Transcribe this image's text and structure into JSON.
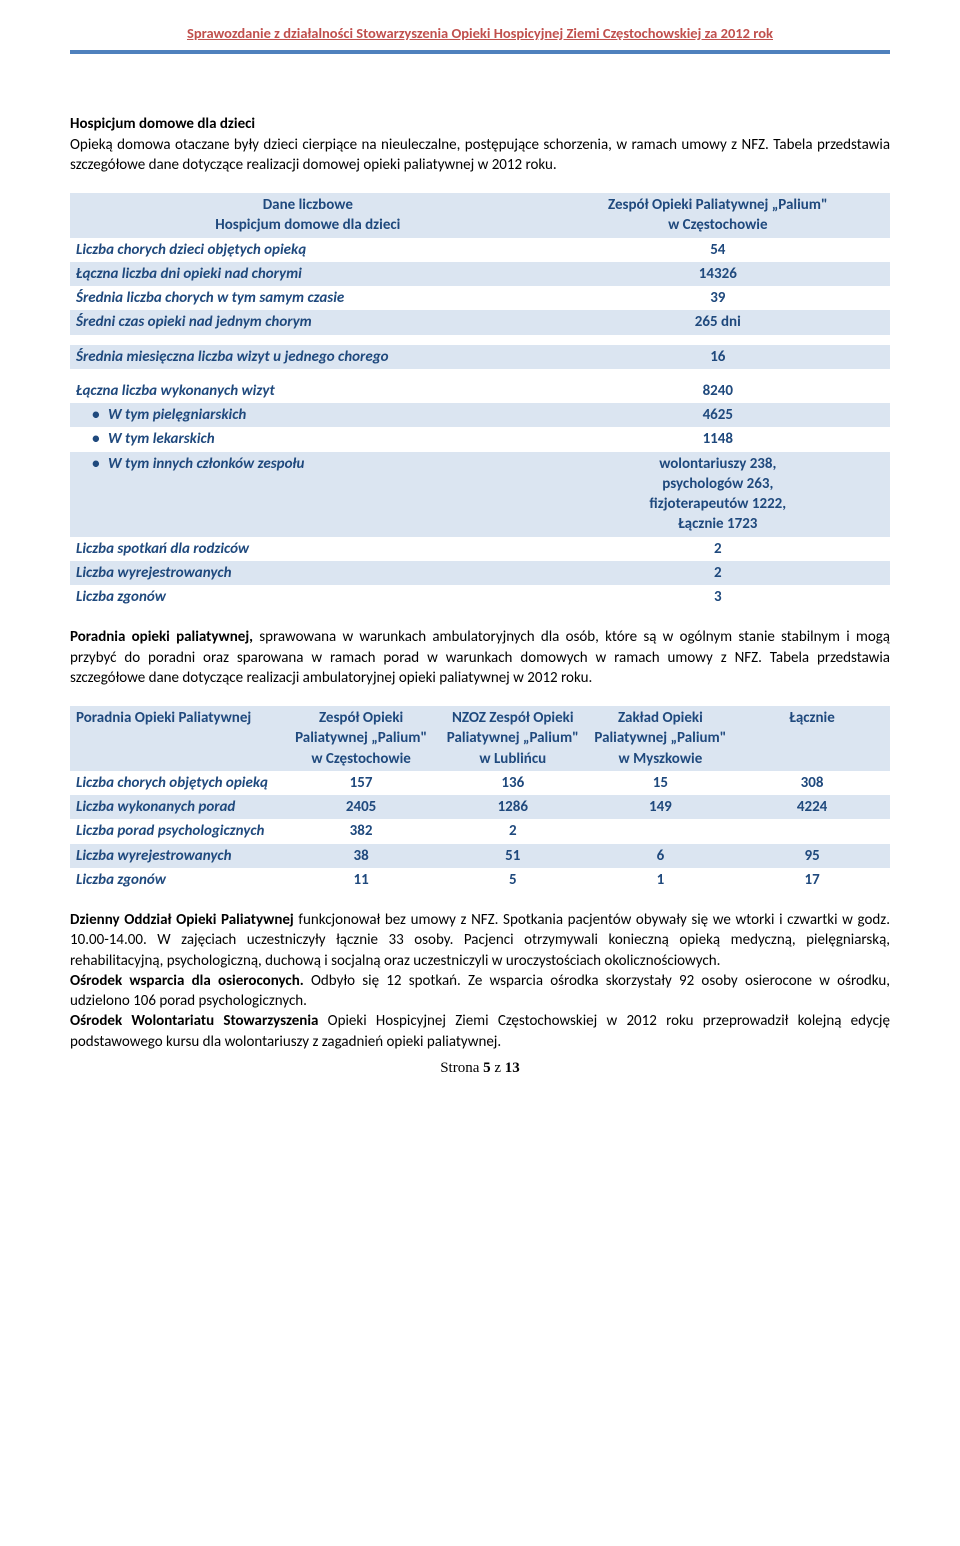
{
  "colors": {
    "header_text": "#c0504d",
    "hr": "#4f81bd",
    "table_head_bg": "#dbe5f1",
    "table_alt_bg": "#dbe5f1",
    "table_text": "#1f497d",
    "body_text": "#000000"
  },
  "header": {
    "title": "Sprawozdanie z działalności Stowarzyszenia Opieki Hospicyjnej Ziemi Częstochowskiej za 2012 rok"
  },
  "section1": {
    "title": "Hospicjum domowe dla dzieci",
    "intro": "Opieką domowa otaczane były dzieci cierpiące na nieuleczalne, postępujące schorzenia, w ramach umowy z NFZ. Tabela przedstawia szczegółowe dane dotyczące realizacji domowej opieki paliatywnej w 2012 roku."
  },
  "table1": {
    "head_left_l1": "Dane liczbowe",
    "head_left_l2": "Hospicjum domowe dla dzieci",
    "head_right_l1": "Zespół Opieki Paliatywnej „Palium\"",
    "head_right_l2": "w Częstochowie",
    "rows": [
      {
        "label": "Liczba chorych dzieci objętych opieką",
        "value": "54"
      },
      {
        "label": "Łączna liczba dni opieki nad chorymi",
        "value": "14326"
      },
      {
        "label": "Średnia liczba chorych w tym samym czasie",
        "value": "39"
      },
      {
        "label": "Średni czas opieki nad jednym chorym",
        "value": "265 dni"
      }
    ],
    "mid_row": {
      "label": "Średnia miesięczna liczba wizyt u jednego chorego",
      "value": "16"
    },
    "rows2": [
      {
        "label": "Łączna liczba wykonanych wizyt",
        "value": "8240",
        "bullet": false
      },
      {
        "label": "W tym pielęgniarskich",
        "value": "4625",
        "bullet": true
      },
      {
        "label": "W tym lekarskich",
        "value": "1148",
        "bullet": true
      },
      {
        "label": "W tym innych członków zespołu",
        "value_lines": [
          "wolontariuszy 238,",
          "psychologów 263,",
          "fizjoterapeutów 1222,",
          "Łącznie 1723"
        ],
        "bullet": true
      }
    ],
    "rows3": [
      {
        "label": "Liczba spotkań dla rodziców",
        "value": "2"
      },
      {
        "label": "Liczba wyrejestrowanych",
        "value": "2"
      },
      {
        "label": "Liczba zgonów",
        "value": "3"
      }
    ]
  },
  "para2": {
    "title": "Poradnia opieki paliatywnej,",
    "text": " sprawowana w warunkach ambulatoryjnych dla osób, które są w ogólnym stanie stabilnym i mogą przybyć do poradni oraz sparowana w ramach porad w warunkach domowych w ramach umowy z NFZ. Tabela przedstawia szczegółowe dane dotyczące realizacji ambulatoryjnej opieki paliatywnej w 2012 roku."
  },
  "table2": {
    "head": {
      "c0": "Poradnia Opieki Paliatywnej",
      "c1": "Zespół Opieki Paliatywnej „Palium\" w Częstochowie",
      "c2": "NZOZ Zespół Opieki Paliatywnej „Palium\" w Lublińcu",
      "c3": "Zakład Opieki Paliatywnej „Palium\" w Myszkowie",
      "c4": "Łącznie"
    },
    "rows": [
      {
        "label": "Liczba chorych objętych opieką",
        "v": [
          "157",
          "136",
          "15",
          "308"
        ]
      },
      {
        "label": "Liczba wykonanych porad",
        "v": [
          "2405",
          "1286",
          "149",
          "4224"
        ]
      },
      {
        "label": "Liczba porad psychologicznych",
        "v": [
          "382",
          "2",
          "",
          ""
        ]
      },
      {
        "label": "Liczba wyrejestrowanych",
        "v": [
          "38",
          "51",
          "6",
          "95"
        ]
      },
      {
        "label": "Liczba zgonów",
        "v": [
          "11",
          "5",
          "1",
          "17"
        ]
      }
    ]
  },
  "para3": {
    "title1": "Dzienny Oddział Opieki Paliatywnej",
    "text1": " funkcjonował bez umowy z NFZ. Spotkania pacjentów obywały się we wtorki i czwartki w godz. 10.00-14.00. W zajęciach uczestniczyły łącznie 33 osoby. Pacjenci otrzymywali konieczną opieką medyczną, pielęgniarską, rehabilitacyjną, psychologiczną, duchową i socjalną oraz uczestniczyli w uroczystościach okolicznościowych.",
    "title2": "Ośrodek wsparcia dla osieroconych.",
    "text2": " Odbyło się 12 spotkań. Ze wsparcia ośrodka skorzystały 92 osoby osierocone w ośrodku, udzielono 106 porad psychologicznych.",
    "title3": "Ośrodek Wolontariatu Stowarzyszenia",
    "text3": " Opieki Hospicyjnej Ziemi Częstochowskiej w 2012 roku przeprowadził kolejną edycję podstawowego kursu dla wolontariuszy z zagadnień opieki paliatywnej."
  },
  "footer": {
    "prefix": "Strona ",
    "page": "5",
    "of": " z ",
    "total": "13"
  }
}
